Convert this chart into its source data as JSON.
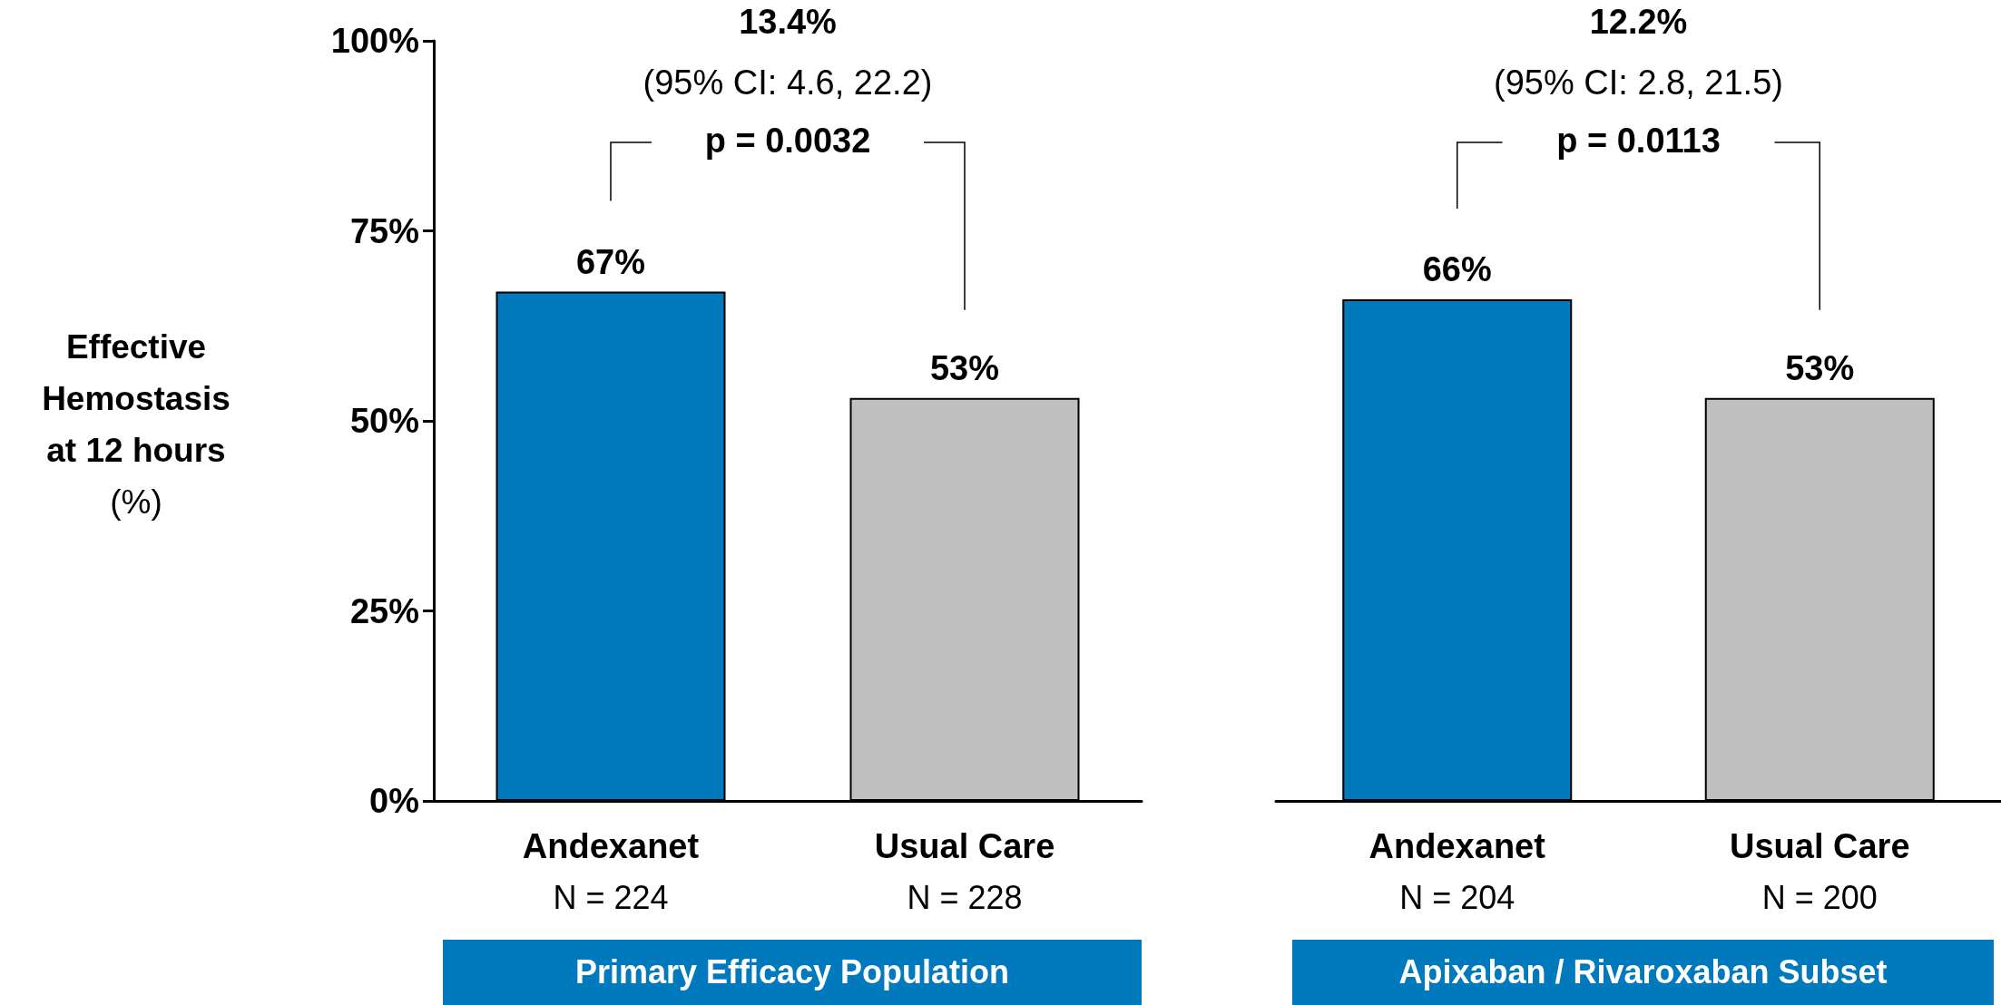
{
  "chart_data": [
    {
      "type": "bar",
      "ylabel": "Effective\nHemostasis\nat 12 hours\n(%)",
      "xlabel": "Primary Efficacy Population",
      "categories": [
        "Andexanet\nN = 224",
        "Usual Care\nN = 228"
      ],
      "values": [
        67,
        53
      ],
      "colors": [
        "#0079bd",
        "#c0c0c0"
      ],
      "value_labels": [
        "67%",
        "53%"
      ],
      "ylim": [
        0,
        100
      ],
      "yticks": [
        {
          "value": 0,
          "label": "0%"
        },
        {
          "value": 25,
          "label": "25%"
        },
        {
          "value": 50,
          "label": "50%"
        },
        {
          "value": 75,
          "label": "75%"
        },
        {
          "value": 100,
          "label": "100%"
        }
      ],
      "annotations": [
        "13.4%",
        "(95% CI: 4.6, 22.2)",
        "p = 0.0032"
      ]
    },
    {
      "type": "bar",
      "xlabel": "Apixaban / Rivaroxaban Subset",
      "categories": [
        "Andexanet\nN = 204",
        "Usual Care\nN = 200"
      ],
      "values": [
        66,
        53
      ],
      "colors": [
        "#0079bd",
        "#c0c0c0"
      ],
      "value_labels": [
        "66%",
        "53%"
      ],
      "ylim": [
        0,
        100
      ],
      "tick_labels": "x",
      "annotations": [
        "12.2%",
        "(95% CI: 2.8, 21.5)",
        "p = 0.0113"
      ]
    }
  ]
}
